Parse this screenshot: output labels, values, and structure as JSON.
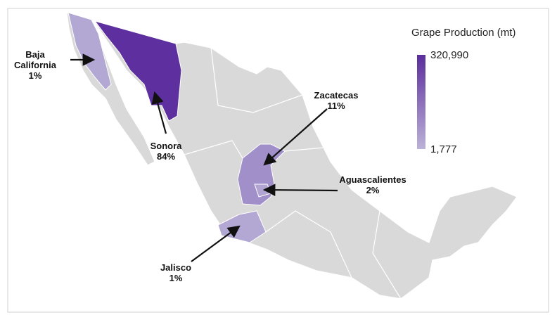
{
  "legend": {
    "title": "Grape Production (mt)",
    "max": "320,990",
    "min": "1,777",
    "max_color": "#5b2d9c",
    "min_color": "#bcb1d8"
  },
  "regions": [
    {
      "name": "Baja California",
      "share": "1%",
      "color": "#b3a7d3"
    },
    {
      "name": "Sonora",
      "share": "84%",
      "color": "#5e2f9e"
    },
    {
      "name": "Zacatecas",
      "share": "11%",
      "color": "#a18fca"
    },
    {
      "name": "Aguascalientes",
      "share": "2%",
      "color": "#b1a4d2"
    },
    {
      "name": "Jalisco",
      "share": "1%",
      "color": "#b3a7d3"
    }
  ]
}
